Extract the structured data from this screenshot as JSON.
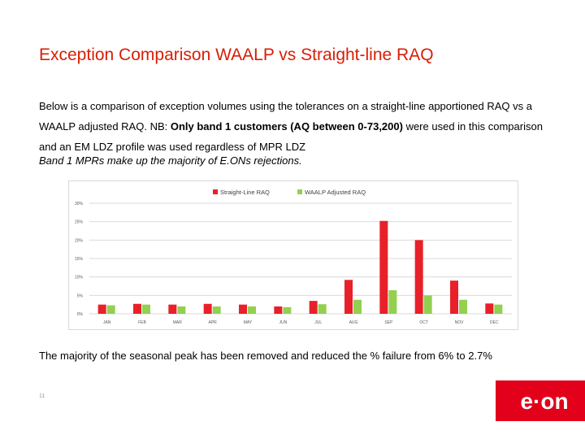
{
  "slide": {
    "title": "Exception Comparison WAALP vs Straight-line RAQ",
    "para_1": "Below is a comparison of exception volumes using the tolerances on a straight-line apportioned RAQ vs a WAALP adjusted RAQ.  NB: ",
    "para_bold": "Only band 1 customers (AQ between 0-73,200)",
    "para_2": " were used in this comparison and an EM LDZ profile was used regardless of MPR LDZ",
    "italic_note": "Band 1 MPRs make up the majority of E.ONs rejections.",
    "summary": "The majority of the seasonal peak has been removed and reduced the % failure from 6% to 2.7%",
    "page_number": "11",
    "logo_text": "e·on"
  },
  "colors": {
    "title": "#d81e05",
    "series_1": "#e8202a",
    "series_2": "#92d050",
    "logo_bg": "#e2001a"
  },
  "chart_data": {
    "type": "bar",
    "title": "",
    "xlabel": "",
    "ylabel": "",
    "ylim": [
      0,
      30
    ],
    "yticks": [
      "0%",
      "5%",
      "10%",
      "15%",
      "20%",
      "25%",
      "30%"
    ],
    "categories": [
      "JAN",
      "FEB",
      "MAR",
      "APR",
      "MAY",
      "JUN",
      "JUL",
      "AUG",
      "SEP",
      "OCT",
      "NOV",
      "DEC"
    ],
    "series": [
      {
        "name": "Straight-Line RAQ",
        "values": [
          2.5,
          2.7,
          2.5,
          2.7,
          2.5,
          2.0,
          3.5,
          9.2,
          25.2,
          20.0,
          9.0,
          2.8
        ]
      },
      {
        "name": "WAALP Adjusted RAQ",
        "values": [
          2.3,
          2.5,
          2.0,
          2.0,
          2.0,
          1.8,
          2.6,
          3.8,
          6.4,
          5.0,
          3.8,
          2.5
        ]
      }
    ],
    "legend_position": "top"
  }
}
